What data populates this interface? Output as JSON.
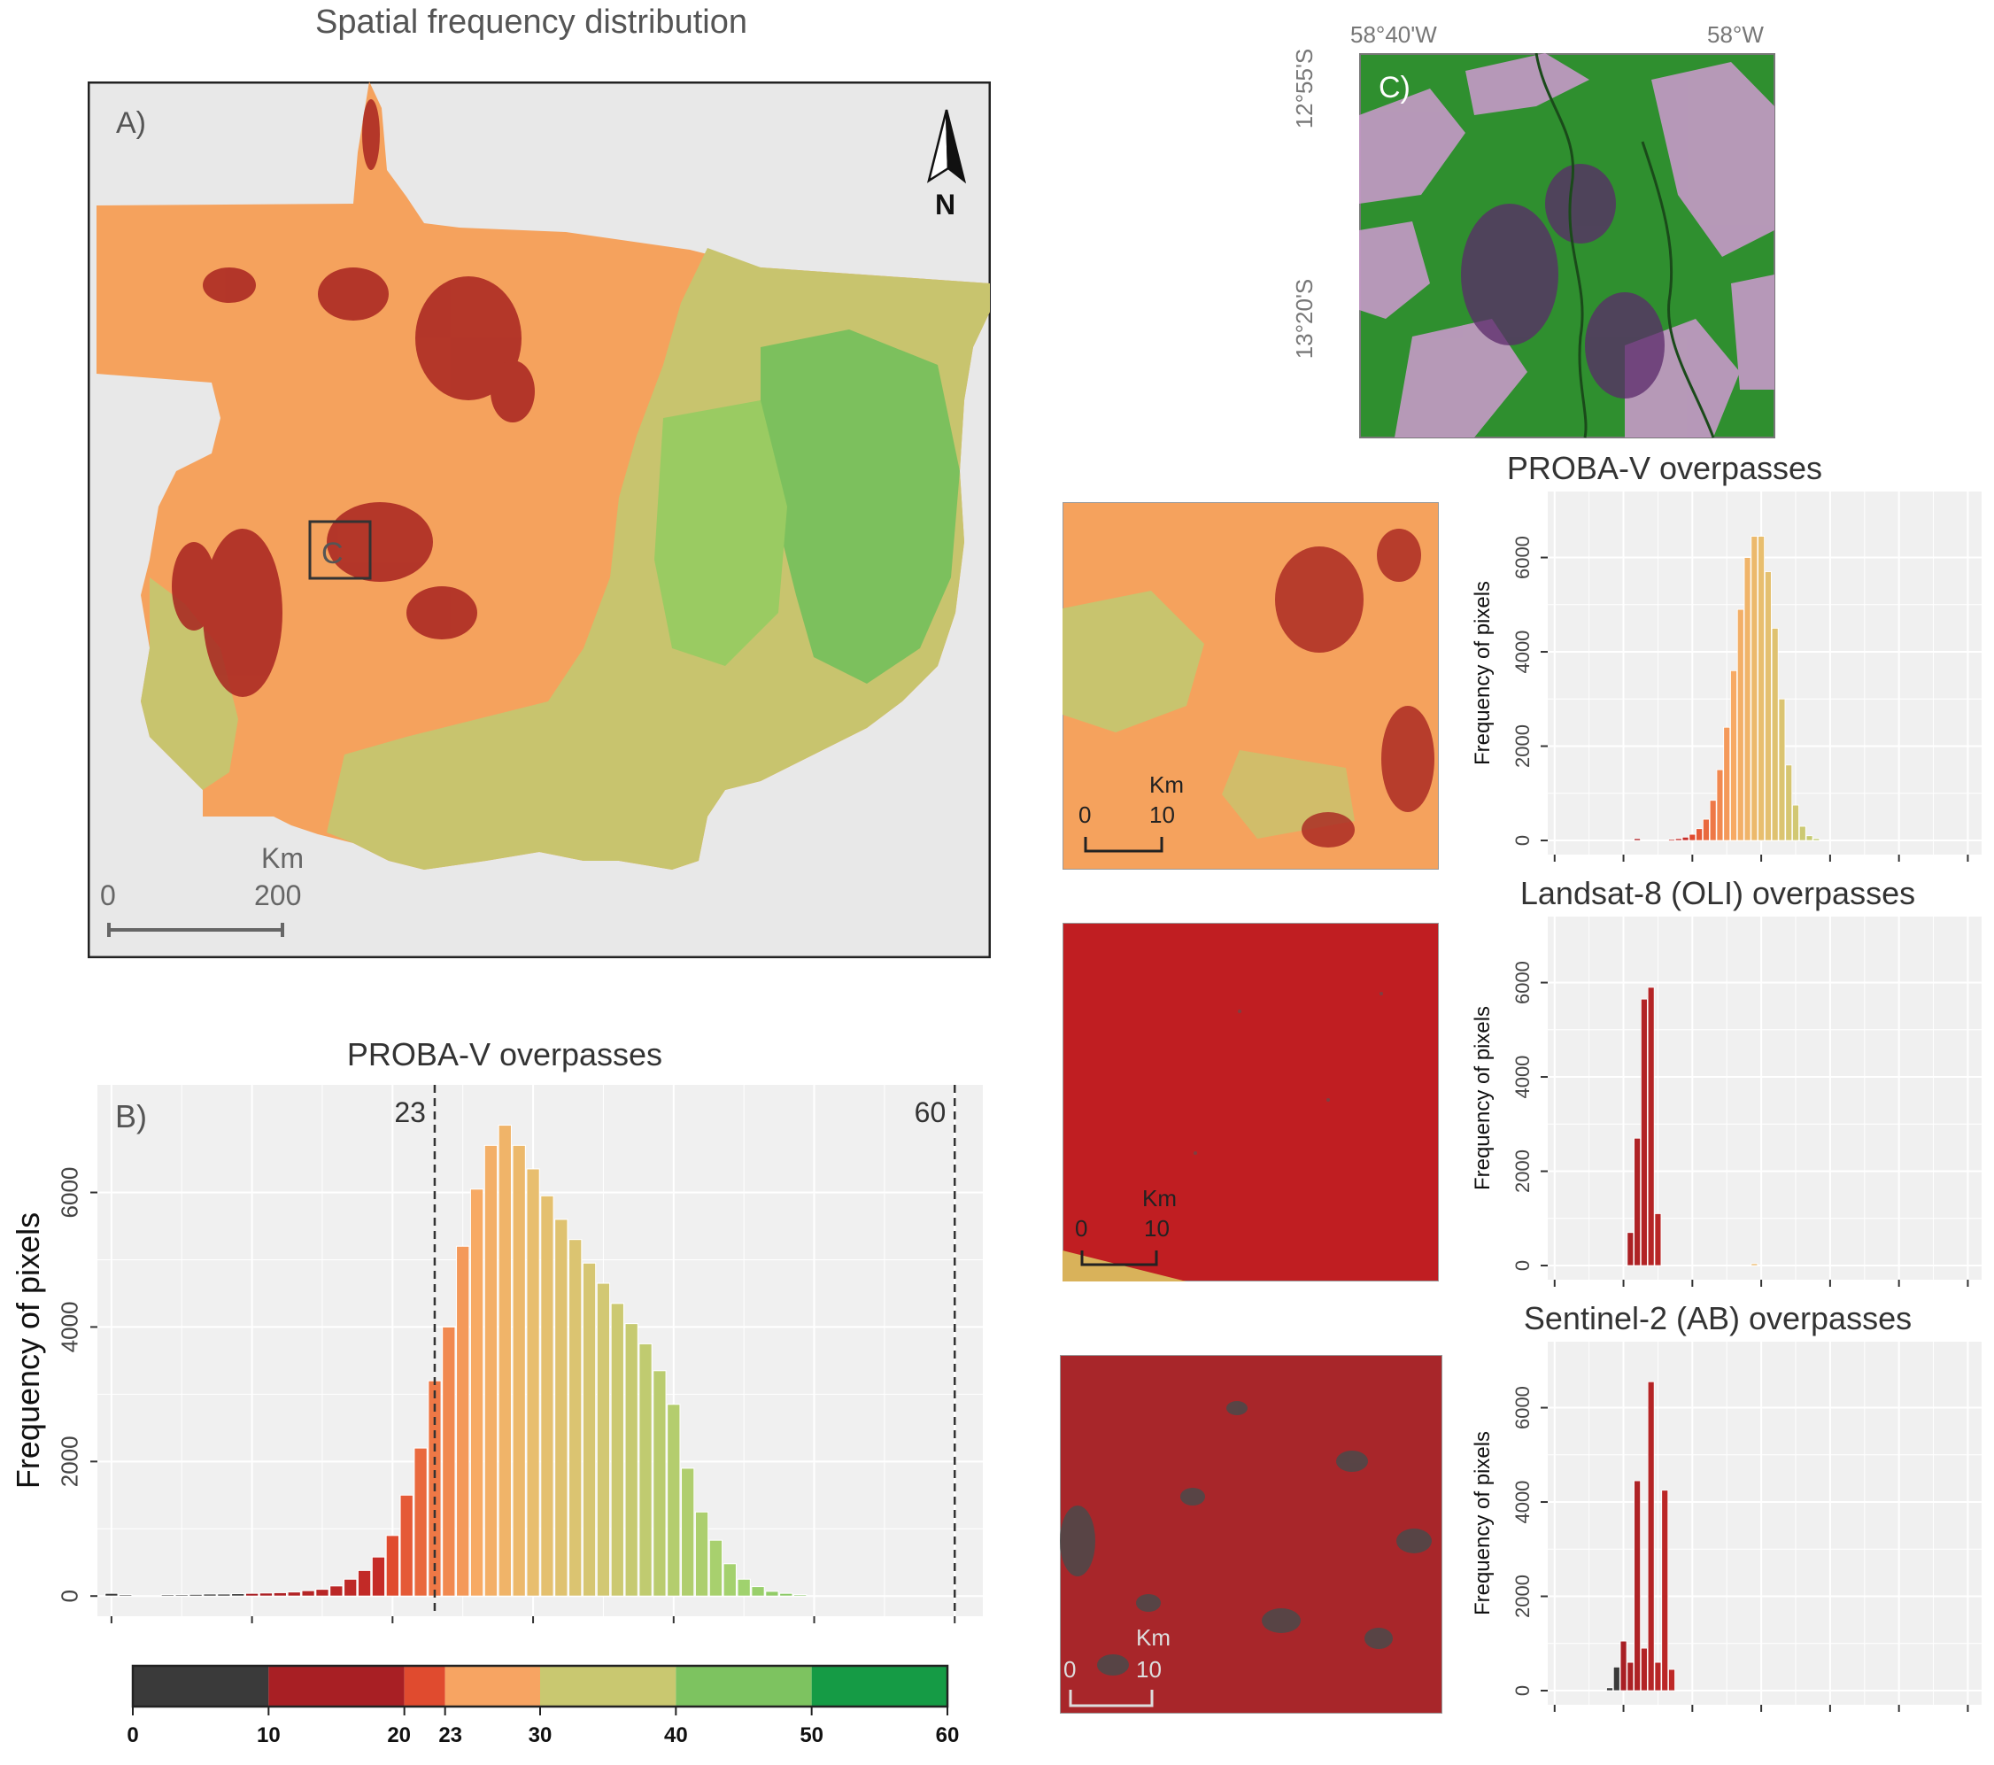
{
  "colors": {
    "c0": "#3a3a3a",
    "c10": "#a81f24",
    "c20": "#e04b2f",
    "c23": "#f7a462",
    "c30": "#c9c870",
    "c40": "#7dc360",
    "c50": "#159b45",
    "panel_bg": "#ebebeb",
    "plot_bg": "#f0f0f0",
    "grid": "#ffffff"
  },
  "map_a": {
    "title": "Spatial frequency distribution",
    "panel_label": "A)",
    "inset_label": "C",
    "north_label": "N",
    "scale_unit": "Km",
    "scale_start": "0",
    "scale_end": "200"
  },
  "satellite_c": {
    "panel_label": "C)",
    "lon_labels": [
      "58°40'W",
      "58°W"
    ],
    "lat_labels": [
      "12°55'S",
      "13°20'S"
    ]
  },
  "insets": [
    {
      "scale_unit": "Km",
      "scale_start": "0",
      "scale_end": "10"
    },
    {
      "scale_unit": "Km",
      "scale_start": "0",
      "scale_end": "10"
    },
    {
      "scale_unit": "Km",
      "scale_start": "0",
      "scale_end": "10"
    }
  ],
  "legend": {
    "ticks": [
      "0",
      "10",
      "20",
      "23",
      "30",
      "40",
      "50",
      "60"
    ],
    "breaks": [
      0,
      10,
      20,
      23,
      30,
      40,
      50,
      60
    ]
  },
  "chart_data": [
    {
      "id": "B",
      "type": "bar",
      "title": "PROBA-V overpasses",
      "panel_label": "B)",
      "ylabel": "Frequency of pixels",
      "xlabel": "",
      "xlim": [
        -1,
        62
      ],
      "ylim": [
        -300,
        7600
      ],
      "yticks": [
        0,
        2000,
        4000,
        6000
      ],
      "ytick_labels": [
        "0",
        "2000",
        "4000",
        "6000"
      ],
      "xticks": [
        0,
        10,
        20,
        30,
        40,
        50,
        60
      ],
      "vlines": [
        {
          "x": 23,
          "label": "23"
        },
        {
          "x": 60,
          "label": "60"
        }
      ],
      "x": [
        0,
        1,
        4,
        5,
        6,
        7,
        8,
        9,
        10,
        11,
        12,
        13,
        14,
        15,
        16,
        17,
        18,
        19,
        20,
        21,
        22,
        23,
        24,
        25,
        26,
        27,
        28,
        29,
        30,
        31,
        32,
        33,
        34,
        35,
        36,
        37,
        38,
        39,
        40,
        41,
        42,
        43,
        44,
        45,
        46,
        47,
        48,
        49
      ],
      "values": [
        40,
        20,
        20,
        20,
        25,
        30,
        30,
        35,
        40,
        45,
        50,
        60,
        80,
        100,
        150,
        250,
        380,
        580,
        900,
        1500,
        2200,
        3200,
        4000,
        5200,
        6050,
        6700,
        7000,
        6700,
        6350,
        5950,
        5600,
        5300,
        4950,
        4650,
        4350,
        4050,
        3750,
        3350,
        2850,
        1900,
        1250,
        830,
        480,
        250,
        140,
        70,
        40,
        20
      ]
    },
    {
      "id": "D1",
      "type": "bar",
      "title": "PROBA-V overpasses",
      "ylabel": "Frequency of pixels",
      "xlim": [
        -1,
        62
      ],
      "ylim": [
        -300,
        7400
      ],
      "yticks": [
        0,
        2000,
        4000,
        6000
      ],
      "ytick_labels": [
        "0",
        "2000",
        "4000",
        "6000"
      ],
      "xticks": [
        0,
        10,
        20,
        30,
        40,
        50,
        60
      ],
      "x": [
        12,
        17,
        18,
        19,
        20,
        21,
        22,
        23,
        24,
        25,
        26,
        27,
        28,
        29,
        30,
        31,
        32,
        33,
        34,
        35,
        36,
        37,
        38
      ],
      "values": [
        40,
        20,
        40,
        70,
        130,
        250,
        450,
        850,
        1500,
        2400,
        3600,
        4900,
        6000,
        6450,
        6450,
        5700,
        4500,
        3000,
        1600,
        750,
        300,
        100,
        40
      ]
    },
    {
      "id": "D2",
      "type": "bar",
      "title": "Landsat-8 (OLI) overpasses",
      "ylabel": "Frequency of pixels",
      "xlim": [
        -1,
        62
      ],
      "ylim": [
        -300,
        7400
      ],
      "yticks": [
        0,
        2000,
        4000,
        6000
      ],
      "ytick_labels": [
        "0",
        "2000",
        "4000",
        "6000"
      ],
      "xticks": [
        0,
        10,
        20,
        30,
        40,
        50,
        60
      ],
      "x": [
        11,
        12,
        13,
        14,
        15,
        29
      ],
      "values": [
        700,
        2700,
        5650,
        5900,
        1100,
        40
      ]
    },
    {
      "id": "D3",
      "type": "bar",
      "title": "Sentinel-2 (AB) overpasses",
      "ylabel": "Frequency of pixels",
      "xlim": [
        -1,
        62
      ],
      "ylim": [
        -300,
        7400
      ],
      "yticks": [
        0,
        2000,
        4000,
        6000
      ],
      "ytick_labels": [
        "0",
        "2000",
        "4000",
        "6000"
      ],
      "xticks": [
        0,
        10,
        20,
        30,
        40,
        50,
        60
      ],
      "x": [
        8,
        9,
        10,
        11,
        12,
        13,
        14,
        15,
        16,
        17
      ],
      "values": [
        60,
        500,
        1050,
        600,
        4450,
        900,
        6550,
        600,
        4250,
        450
      ]
    }
  ]
}
